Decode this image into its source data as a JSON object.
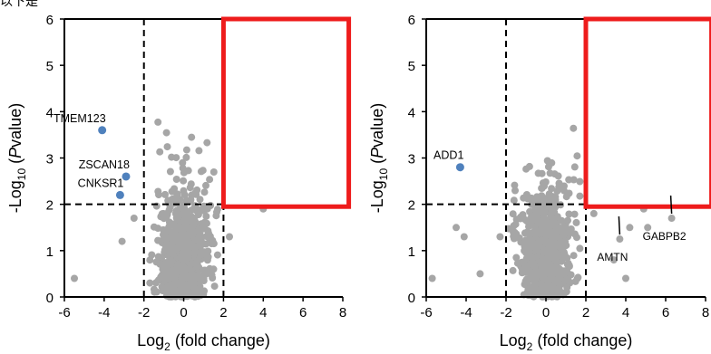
{
  "header_fragment": "以下是",
  "chart_data": [
    {
      "type": "scatter",
      "xlabel_base": "Log",
      "xlabel_sub": "2",
      "xlabel_rest": " (fold change)",
      "ylabel_pre": "-Log",
      "ylabel_sub": "10",
      "ylabel_rest": " (",
      "ylabel_p": "P",
      "ylabel_value": "value)",
      "xlim": [
        -6,
        8
      ],
      "ylim": [
        0,
        6
      ],
      "xticks": [
        -6,
        -4,
        -2,
        0,
        2,
        4,
        6,
        8
      ],
      "yticks": [
        0,
        1,
        2,
        3,
        4,
        5,
        6
      ],
      "thresholds": {
        "x": [
          -2,
          2
        ],
        "y": 2
      },
      "colors": {
        "background": "#a6a6a6",
        "highlight": "#4f81bd",
        "box": "#ee1c1c"
      },
      "highlight_points": [
        {
          "label": "TMEM123",
          "x": -4.1,
          "y": 3.6
        },
        {
          "label": "ZSCAN18",
          "x": -2.9,
          "y": 2.6
        },
        {
          "label": "CNKSR1",
          "x": -3.2,
          "y": 2.2
        }
      ],
      "labeled_grey_points": [],
      "extra_points": [
        [
          -5.5,
          0.4
        ],
        [
          -3.1,
          1.2
        ],
        [
          -2.5,
          1.7
        ],
        [
          2.3,
          1.3
        ],
        [
          4.0,
          1.9
        ],
        [
          1.5,
          0.6
        ],
        [
          -1.7,
          0.3
        ]
      ],
      "bulk_seed": 7,
      "bulk_count": 900,
      "box_region": {
        "x_min": 2.0,
        "x_max": 8.3,
        "y_min": 1.95,
        "y_max": 6.0
      }
    },
    {
      "type": "scatter",
      "xlabel_base": "Log",
      "xlabel_sub": "2",
      "xlabel_rest": " (fold change)",
      "ylabel_pre": "-Log",
      "ylabel_sub": "10",
      "ylabel_rest": " (",
      "ylabel_p": "P",
      "ylabel_value": "value)",
      "xlim": [
        -6,
        8
      ],
      "ylim": [
        0,
        6
      ],
      "xticks": [
        -6,
        -4,
        -2,
        0,
        2,
        4,
        6,
        8
      ],
      "yticks": [
        0,
        1,
        2,
        3,
        4,
        5,
        6
      ],
      "thresholds": {
        "x": [
          -2,
          2
        ],
        "y": 2
      },
      "colors": {
        "background": "#a6a6a6",
        "highlight": "#4f81bd",
        "box": "#ee1c1c"
      },
      "highlight_points": [
        {
          "label": "ADD1",
          "x": -4.3,
          "y": 2.8
        }
      ],
      "labeled_grey_points": [
        {
          "label": "AMTN",
          "x": 3.7,
          "y": 1.25
        },
        {
          "label": "GABPB2",
          "x": 6.3,
          "y": 1.7
        }
      ],
      "extra_points": [
        [
          -5.7,
          0.4
        ],
        [
          -4.5,
          1.5
        ],
        [
          -4.1,
          1.3
        ],
        [
          -3.3,
          0.5
        ],
        [
          -2.3,
          1.3
        ],
        [
          2.4,
          1.8
        ],
        [
          3.4,
          0.8
        ],
        [
          4.2,
          1.5
        ],
        [
          5.1,
          1.5
        ],
        [
          4.9,
          1.9
        ],
        [
          4.0,
          0.4
        ]
      ],
      "bulk_seed": 11,
      "bulk_count": 950,
      "box_region": {
        "x_min": 2.0,
        "x_max": 8.3,
        "y_min": 1.95,
        "y_max": 6.0
      }
    }
  ]
}
